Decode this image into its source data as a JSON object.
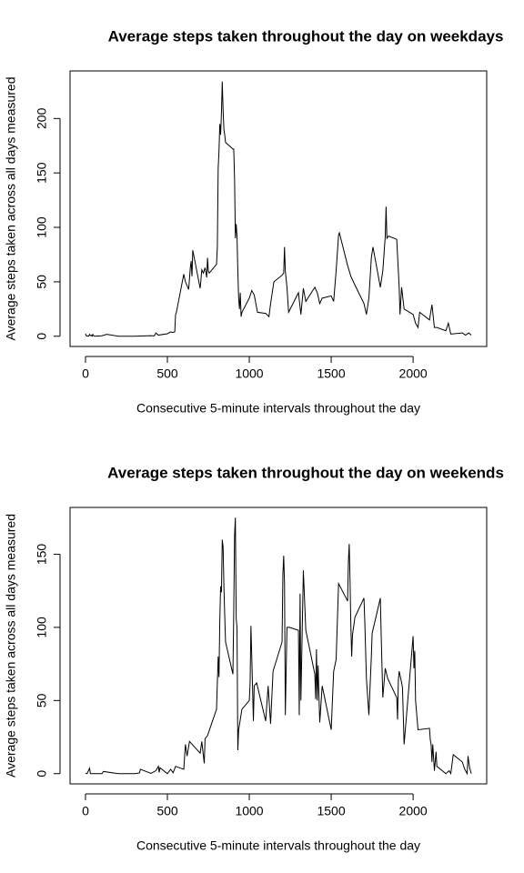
{
  "chart_data": [
    {
      "type": "line",
      "title": "Average steps taken throughout the day on weekdays",
      "xlabel": "Consecutive 5-minute intervals throughout the day",
      "ylabel": "Average steps taken across all days measured",
      "xlim": [
        -94.2,
        2449.2
      ],
      "ylim": [
        -9.4,
        243.7
      ],
      "xticks": [
        0,
        500,
        1000,
        1500,
        2000
      ],
      "yticks": [
        0,
        50,
        100,
        150,
        200
      ],
      "series": [
        {
          "name": "weekdays",
          "color": "#000000",
          "x": [
            0,
            5,
            10,
            15,
            20,
            25,
            30,
            35,
            40,
            45,
            50,
            55,
            100,
            130,
            200,
            300,
            400,
            420,
            430,
            445,
            500,
            520,
            530,
            545,
            550,
            555,
            600,
            610,
            630,
            640,
            645,
            650,
            655,
            700,
            705,
            710,
            720,
            730,
            740,
            745,
            750,
            755,
            800,
            805,
            810,
            815,
            820,
            825,
            830,
            835,
            840,
            845,
            850,
            855,
            900,
            905,
            910,
            915,
            920,
            925,
            930,
            935,
            940,
            945,
            950,
            955,
            1000,
            1015,
            1030,
            1050,
            1100,
            1120,
            1130,
            1150,
            1200,
            1210,
            1215,
            1220,
            1230,
            1240,
            1300,
            1315,
            1330,
            1345,
            1400,
            1415,
            1430,
            1445,
            1500,
            1515,
            1530,
            1545,
            1550,
            1600,
            1620,
            1645,
            1700,
            1715,
            1730,
            1745,
            1755,
            1800,
            1815,
            1830,
            1835,
            1840,
            1850,
            1900,
            1915,
            1920,
            1930,
            1945,
            2000,
            2015,
            2030,
            2040,
            2100,
            2115,
            2130,
            2145,
            2200,
            2215,
            2230,
            2300,
            2320,
            2340,
            2355
          ],
          "values": [
            2.3,
            0.4,
            0.2,
            0.2,
            0.1,
            1.6,
            0.6,
            1,
            0,
            1.7,
            0.4,
            0,
            0.4,
            1.8,
            0,
            0,
            0.5,
            0.3,
            3,
            1,
            2.3,
            4,
            3.5,
            4,
            20,
            22,
            57,
            50,
            43,
            63,
            69,
            55,
            79,
            44,
            52,
            61,
            58,
            63,
            54,
            72,
            60,
            58,
            66,
            82,
            154,
            170,
            195,
            185,
            205,
            234,
            208,
            190,
            185,
            178,
            172,
            172,
            145,
            90,
            103,
            92,
            60,
            35,
            25,
            40,
            18,
            22,
            35,
            42,
            38,
            22,
            21,
            18,
            30,
            50,
            56,
            58,
            82,
            60,
            45,
            22,
            40,
            20,
            44,
            32,
            45,
            40,
            30,
            35,
            37,
            32,
            60,
            93,
            95,
            65,
            55,
            47,
            30,
            20,
            35,
            72,
            82,
            45,
            60,
            92,
            119,
            90,
            92,
            89,
            45,
            20,
            45,
            25,
            20,
            12,
            8,
            22,
            15,
            29,
            8,
            8,
            5,
            12,
            2,
            3,
            1,
            3,
            1
          ]
        }
      ]
    },
    {
      "type": "line",
      "title": "Average steps taken throughout the day on weekends",
      "xlabel": "Consecutive 5-minute intervals throughout the day",
      "ylabel": "Average steps taken across all days measured",
      "xlim": [
        -94.2,
        2449.2
      ],
      "ylim": [
        -7,
        182
      ],
      "xticks": [
        0,
        500,
        1000,
        1500,
        2000
      ],
      "yticks": [
        0,
        50,
        100,
        150
      ],
      "series": [
        {
          "name": "weekends",
          "color": "#000000",
          "x": [
            0,
            10,
            25,
            30,
            100,
            110,
            200,
            300,
            330,
            335,
            400,
            430,
            445,
            450,
            455,
            500,
            520,
            535,
            550,
            600,
            610,
            620,
            635,
            700,
            710,
            725,
            730,
            745,
            800,
            810,
            815,
            820,
            825,
            830,
            835,
            840,
            845,
            850,
            855,
            900,
            905,
            910,
            915,
            920,
            925,
            930,
            935,
            955,
            1000,
            1005,
            1010,
            1015,
            1025,
            1030,
            1045,
            1100,
            1115,
            1130,
            1145,
            1200,
            1205,
            1210,
            1215,
            1220,
            1230,
            1245,
            1300,
            1305,
            1310,
            1315,
            1330,
            1345,
            1400,
            1405,
            1410,
            1415,
            1420,
            1430,
            1445,
            1500,
            1515,
            1530,
            1545,
            1600,
            1605,
            1610,
            1615,
            1620,
            1625,
            1630,
            1645,
            1700,
            1705,
            1715,
            1730,
            1745,
            1750,
            1800,
            1805,
            1815,
            1830,
            1845,
            1900,
            1905,
            1910,
            1915,
            1930,
            1935,
            1945,
            2000,
            2005,
            2010,
            2015,
            2030,
            2100,
            2105,
            2110,
            2115,
            2120,
            2130,
            2140,
            2145,
            2200,
            2220,
            2230,
            2245,
            2300,
            2315,
            2330,
            2335,
            2345,
            2355
          ],
          "values": [
            0.2,
            0,
            3.7,
            0,
            0,
            1.5,
            0,
            0,
            0.5,
            3,
            0.2,
            2,
            5,
            0.8,
            4,
            0,
            3,
            0.6,
            5,
            3,
            20,
            12,
            22,
            14,
            22,
            7,
            24,
            26,
            44,
            80,
            66,
            105,
            128,
            124,
            160,
            155,
            128,
            108,
            90,
            68,
            110,
            163,
            175,
            106,
            100,
            16,
            30,
            44,
            50,
            62,
            101,
            80,
            36,
            60,
            62,
            36,
            60,
            34,
            70,
            90,
            136,
            149,
            130,
            40,
            100,
            100,
            98,
            40,
            123,
            50,
            139,
            98,
            68,
            51,
            85,
            50,
            74,
            35,
            60,
            30,
            70,
            78,
            130,
            118,
            145,
            157,
            132,
            101,
            80,
            95,
            107,
            120,
            104,
            65,
            40,
            80,
            96,
            120,
            95,
            52,
            72,
            65,
            52,
            37,
            64,
            70,
            62,
            59,
            20,
            94,
            72,
            84,
            50,
            30,
            31,
            23,
            20,
            8,
            20,
            2,
            15,
            5,
            0,
            2,
            0,
            13,
            8,
            3,
            0,
            12,
            4,
            0
          ]
        }
      ]
    }
  ]
}
